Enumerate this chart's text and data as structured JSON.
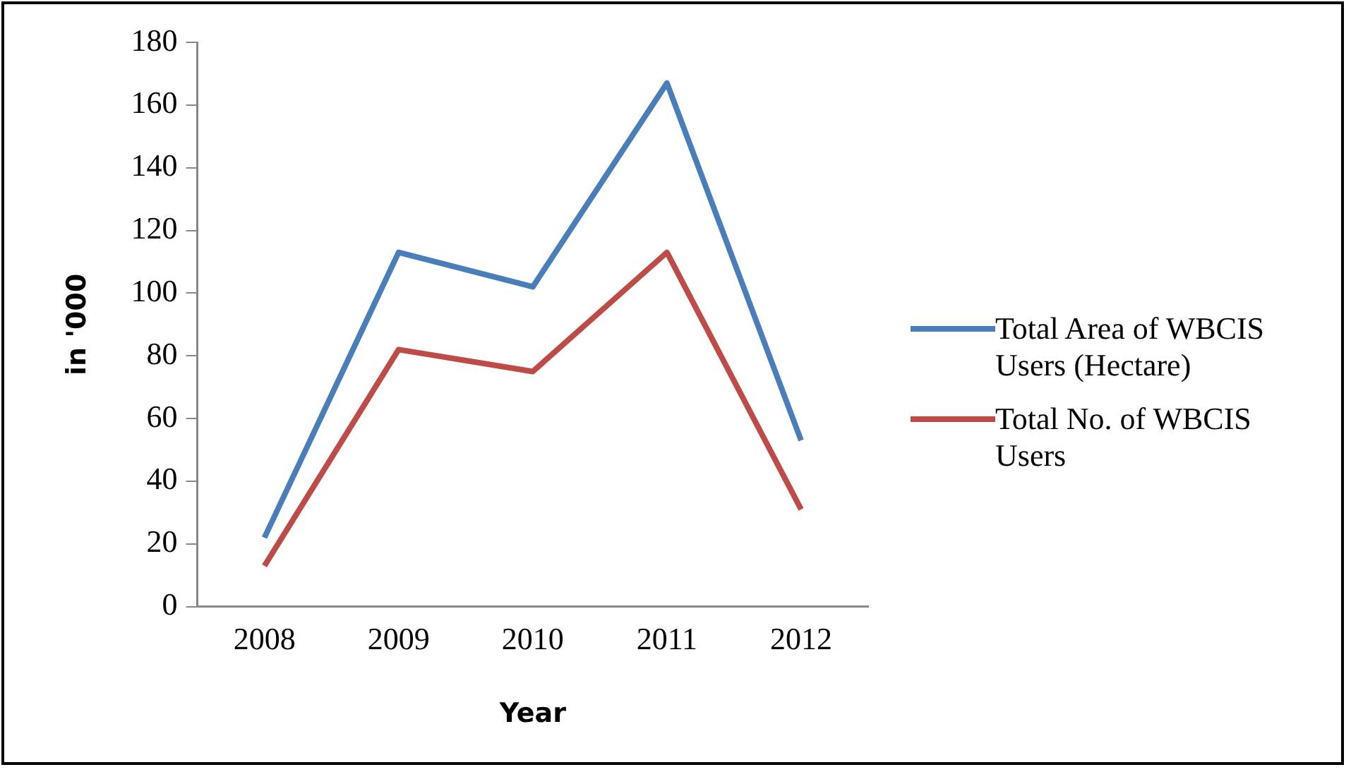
{
  "chart_data": {
    "type": "line",
    "xlabel": "Year",
    "ylabel": "in '000",
    "categories": [
      "2008",
      "2009",
      "2010",
      "2011",
      "2012"
    ],
    "series": [
      {
        "name": "Total Area of WBCIS Users (Hectare)",
        "color": "#4a7ebb",
        "values": [
          22,
          113,
          102,
          167,
          53
        ]
      },
      {
        "name": "Total No. of WBCIS Users",
        "color": "#be4b48",
        "values": [
          13,
          82,
          75,
          113,
          31
        ]
      }
    ],
    "ylim": [
      0,
      180
    ],
    "yticks": [
      0,
      20,
      40,
      60,
      80,
      100,
      120,
      140,
      160,
      180
    ],
    "grid": false,
    "legend": "right",
    "marker": "none",
    "line_style": "solid"
  }
}
